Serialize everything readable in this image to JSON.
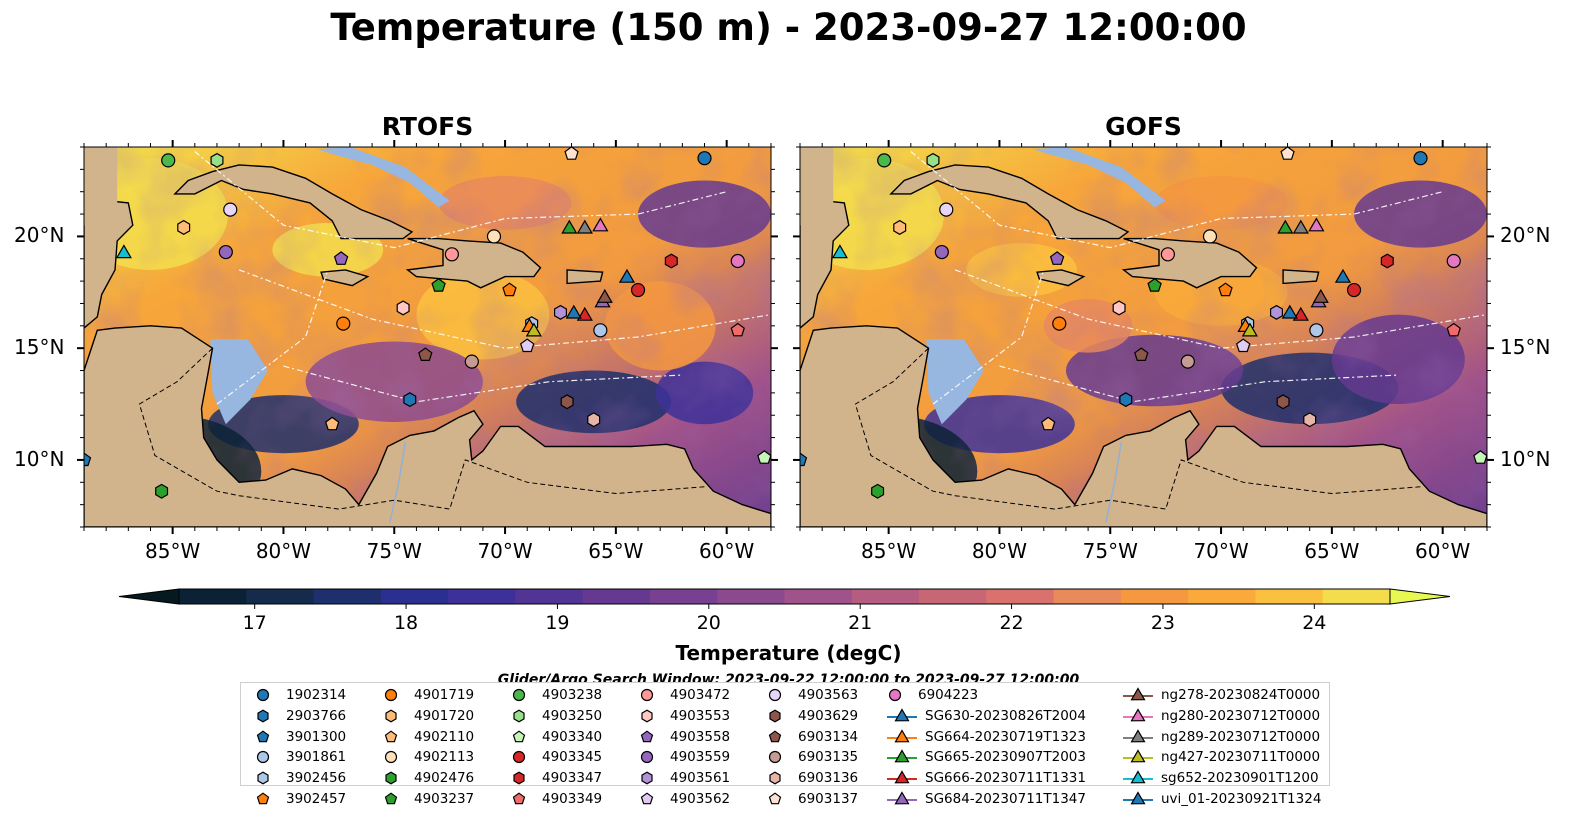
{
  "title": "Temperature (150 m) - 2023-09-27 12:00:00",
  "panels": [
    {
      "id": "rtofs",
      "title": "RTOFS"
    },
    {
      "id": "gofs",
      "title": "GOFS"
    }
  ],
  "axes": {
    "lon_ticks": [
      "85°W",
      "80°W",
      "75°W",
      "70°W",
      "65°W",
      "60°W"
    ],
    "lat_ticks": [
      "20°N",
      "15°N",
      "10°N"
    ],
    "lon_range": [
      -89,
      -58
    ],
    "lat_range": [
      7,
      24
    ]
  },
  "colorbar": {
    "label": "Temperature (degC)",
    "ticks": [
      "17",
      "18",
      "19",
      "20",
      "21",
      "22",
      "23",
      "24"
    ],
    "min": 16.5,
    "max": 24.5,
    "colors": [
      "#0b2236",
      "#142b4b",
      "#1d2f6c",
      "#2b3090",
      "#3d3199",
      "#523495",
      "#65398f",
      "#774090",
      "#8c4a8e",
      "#a0528a",
      "#b55d80",
      "#c76776",
      "#d9716d",
      "#e98a5a",
      "#f5983f",
      "#f9aa3a",
      "#fac03f",
      "#f3dd4c"
    ],
    "extend_low": "#06191e",
    "extend_high": "#e8f852"
  },
  "search_window": "Glider/Argo Search Window: 2023-09-22 12:00:00 to 2023-09-27 12:00:00",
  "legend": [
    {
      "label": "1902314",
      "marker": "circle",
      "color": "#1f77b4"
    },
    {
      "label": "2903766",
      "marker": "hexagon",
      "color": "#1f77b4"
    },
    {
      "label": "3901300",
      "marker": "pentagon",
      "color": "#1f77b4"
    },
    {
      "label": "3901861",
      "marker": "circle",
      "color": "#aec7e8"
    },
    {
      "label": "3902456",
      "marker": "hexagon",
      "color": "#aec7e8"
    },
    {
      "label": "3902457",
      "marker": "pentagon",
      "color": "#ff7f0e"
    },
    {
      "label": "4901719",
      "marker": "circle",
      "color": "#ff7f0e"
    },
    {
      "label": "4901720",
      "marker": "hexagon",
      "color": "#ffbb78"
    },
    {
      "label": "4902110",
      "marker": "pentagon",
      "color": "#ffbb78"
    },
    {
      "label": "4902113",
      "marker": "circle",
      "color": "#ffe0b8"
    },
    {
      "label": "4902476",
      "marker": "hexagon",
      "color": "#2ca02c"
    },
    {
      "label": "4903237",
      "marker": "pentagon",
      "color": "#2ca02c"
    },
    {
      "label": "4903238",
      "marker": "circle",
      "color": "#4cb84c"
    },
    {
      "label": "4903250",
      "marker": "hexagon",
      "color": "#98df8a"
    },
    {
      "label": "4903340",
      "marker": "pentagon",
      "color": "#c6f5b8"
    },
    {
      "label": "4903345",
      "marker": "circle",
      "color": "#d62728"
    },
    {
      "label": "4903347",
      "marker": "hexagon",
      "color": "#d62728"
    },
    {
      "label": "4903349",
      "marker": "pentagon",
      "color": "#f06b6b"
    },
    {
      "label": "4903472",
      "marker": "circle",
      "color": "#ff9896"
    },
    {
      "label": "4903553",
      "marker": "hexagon",
      "color": "#ffc8c4"
    },
    {
      "label": "4903558",
      "marker": "pentagon",
      "color": "#9467bd"
    },
    {
      "label": "4903559",
      "marker": "circle",
      "color": "#9467bd"
    },
    {
      "label": "4903561",
      "marker": "hexagon",
      "color": "#b393d8"
    },
    {
      "label": "4903562",
      "marker": "pentagon",
      "color": "#e0ccf2"
    },
    {
      "label": "4903563",
      "marker": "circle",
      "color": "#e8d4f6"
    },
    {
      "label": "4903629",
      "marker": "hexagon",
      "color": "#8c564b"
    },
    {
      "label": "6903134",
      "marker": "pentagon",
      "color": "#8c564b"
    },
    {
      "label": "6903135",
      "marker": "circle",
      "color": "#c49c94"
    },
    {
      "label": "6903136",
      "marker": "hexagon",
      "color": "#e7b5a8"
    },
    {
      "label": "6903137",
      "marker": "pentagon",
      "color": "#fde2d2"
    },
    {
      "label": "6904223",
      "marker": "circle",
      "color": "#e377c2"
    },
    {
      "label": "SG630-20230826T2004",
      "marker": "triangle",
      "color": "#1f77b4"
    },
    {
      "label": "SG664-20230719T1323",
      "marker": "triangle",
      "color": "#ff7f0e"
    },
    {
      "label": "SG665-20230907T2003",
      "marker": "triangle",
      "color": "#2ca02c"
    },
    {
      "label": "SG666-20230711T1331",
      "marker": "triangle",
      "color": "#d62728"
    },
    {
      "label": "SG684-20230711T1347",
      "marker": "triangle",
      "color": "#9467bd"
    },
    {
      "label": "ng278-20230824T0000",
      "marker": "triangle",
      "color": "#8c564b"
    },
    {
      "label": "ng280-20230712T0000",
      "marker": "triangle",
      "color": "#e377c2"
    },
    {
      "label": "ng289-20230712T0000",
      "marker": "triangle",
      "color": "#7f7f7f"
    },
    {
      "label": "ng427-20230711T0000",
      "marker": "triangle",
      "color": "#bcbd22"
    },
    {
      "label": "sg652-20230901T1200",
      "marker": "triangle",
      "color": "#17becf"
    },
    {
      "label": "uvi_01-20230921T1324",
      "marker": "triangle",
      "color": "#1f77b4"
    }
  ],
  "observations": [
    {
      "id": "1902314",
      "lon": -61.0,
      "lat": 23.5
    },
    {
      "id": "2903766",
      "lon": -74.3,
      "lat": 12.7
    },
    {
      "id": "3901300",
      "lon": -89.0,
      "lat": 10.0
    },
    {
      "id": "3901861",
      "lon": -65.7,
      "lat": 15.8
    },
    {
      "id": "3902456",
      "lon": -68.8,
      "lat": 16.1
    },
    {
      "id": "3902457",
      "lon": -69.8,
      "lat": 17.6
    },
    {
      "id": "4901719",
      "lon": -77.3,
      "lat": 16.1
    },
    {
      "id": "4901720",
      "lon": -84.5,
      "lat": 20.4
    },
    {
      "id": "4902110",
      "lon": -77.8,
      "lat": 11.6
    },
    {
      "id": "4902113",
      "lon": -70.5,
      "lat": 20.0
    },
    {
      "id": "4902476",
      "lon": -85.5,
      "lat": 8.6
    },
    {
      "id": "4903237",
      "lon": -73.0,
      "lat": 17.8
    },
    {
      "id": "4903238",
      "lon": -85.2,
      "lat": 23.4
    },
    {
      "id": "4903250",
      "lon": -83.0,
      "lat": 23.4
    },
    {
      "id": "4903340",
      "lon": -58.3,
      "lat": 10.1
    },
    {
      "id": "4903345",
      "lon": -64.0,
      "lat": 17.6
    },
    {
      "id": "4903347",
      "lon": -62.5,
      "lat": 18.9
    },
    {
      "id": "4903349",
      "lon": -59.5,
      "lat": 15.8
    },
    {
      "id": "4903472",
      "lon": -72.4,
      "lat": 19.2
    },
    {
      "id": "4903553",
      "lon": -74.6,
      "lat": 16.8
    },
    {
      "id": "4903558",
      "lon": -77.4,
      "lat": 19.0
    },
    {
      "id": "4903559",
      "lon": -82.6,
      "lat": 19.3
    },
    {
      "id": "4903561",
      "lon": -67.5,
      "lat": 16.6
    },
    {
      "id": "4903562",
      "lon": -69.0,
      "lat": 15.1
    },
    {
      "id": "4903563",
      "lon": -82.4,
      "lat": 21.2
    },
    {
      "id": "4903629",
      "lon": -67.2,
      "lat": 12.6
    },
    {
      "id": "6903134",
      "lon": -73.6,
      "lat": 14.7
    },
    {
      "id": "6903135",
      "lon": -71.5,
      "lat": 14.4
    },
    {
      "id": "6903136",
      "lon": -66.0,
      "lat": 11.8
    },
    {
      "id": "6903137",
      "lon": -67.0,
      "lat": 23.7
    },
    {
      "id": "6904223",
      "lon": -59.5,
      "lat": 18.9
    },
    {
      "id": "SG630-20230826T2004",
      "lon": -64.5,
      "lat": 18.2
    },
    {
      "id": "SG664-20230719T1323",
      "lon": -68.9,
      "lat": 16.0
    },
    {
      "id": "SG665-20230907T2003",
      "lon": -67.1,
      "lat": 20.4
    },
    {
      "id": "SG666-20230711T1331",
      "lon": -66.4,
      "lat": 16.5
    },
    {
      "id": "SG684-20230711T1347",
      "lon": -65.6,
      "lat": 17.1
    },
    {
      "id": "ng278-20230824T0000",
      "lon": -65.5,
      "lat": 17.3
    },
    {
      "id": "ng280-20230712T0000",
      "lon": -65.7,
      "lat": 20.5
    },
    {
      "id": "ng289-20230712T0000",
      "lon": -66.4,
      "lat": 20.4
    },
    {
      "id": "ng427-20230711T0000",
      "lon": -68.7,
      "lat": 15.8
    },
    {
      "id": "sg652-20230901T1200",
      "lon": -87.2,
      "lat": 19.3
    },
    {
      "id": "uvi_01-20230921T1324",
      "lon": -66.9,
      "lat": 16.6
    }
  ]
}
